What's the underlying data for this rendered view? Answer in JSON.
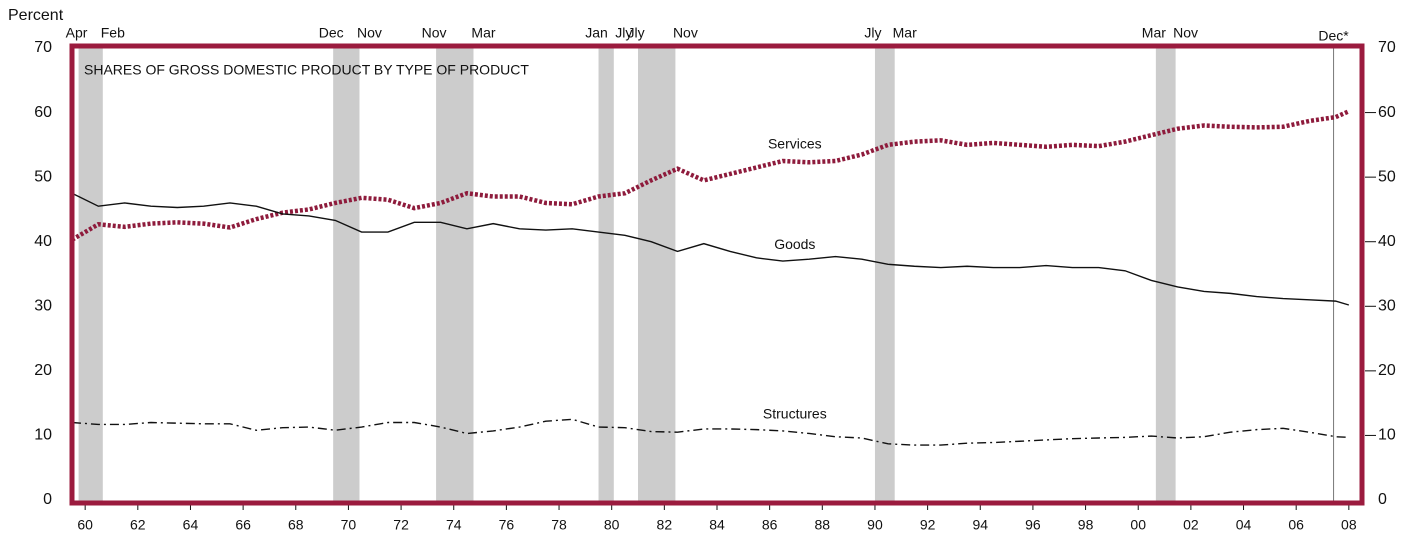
{
  "chart_data": {
    "type": "line",
    "title": "SHARES OF GROSS DOMESTIC PRODUCT BY TYPE OF PRODUCT",
    "y_label": "Percent",
    "x": [
      1960,
      1961,
      1962,
      1963,
      1964,
      1965,
      1966,
      1967,
      1968,
      1969,
      1970,
      1971,
      1972,
      1973,
      1974,
      1975,
      1976,
      1977,
      1978,
      1979,
      1980,
      1981,
      1982,
      1983,
      1984,
      1985,
      1986,
      1987,
      1988,
      1989,
      1990,
      1991,
      1992,
      1993,
      1994,
      1995,
      1996,
      1997,
      1998,
      1999,
      2000,
      2001,
      2002,
      2003,
      2004,
      2005,
      2006,
      2007,
      2008,
      2008.5
    ],
    "series": [
      {
        "name": "Services",
        "color": "#8e1b3c",
        "line_style": "dotted",
        "values": [
          40.3,
          42.7,
          42.3,
          42.8,
          43,
          42.8,
          42.2,
          43.5,
          44.5,
          45,
          46,
          46.8,
          46.5,
          45.2,
          46,
          47.5,
          47,
          47,
          46,
          45.8,
          47,
          47.5,
          49.5,
          51.3,
          49.5,
          50.5,
          51.5,
          52.5,
          52.3,
          52.5,
          53.5,
          55,
          55.5,
          55.7,
          55,
          55.3,
          55,
          54.7,
          55,
          54.8,
          55.5,
          56.5,
          57.5,
          58,
          57.8,
          57.7,
          57.8,
          58.7,
          59.3,
          60.2
        ]
      },
      {
        "name": "Goods",
        "color": "#111111",
        "line_style": "solid",
        "values": [
          47.5,
          45.5,
          46,
          45.5,
          45.3,
          45.5,
          46,
          45.5,
          44.3,
          44,
          43.3,
          41.5,
          41.5,
          43,
          43,
          42,
          42.8,
          42,
          41.8,
          42,
          41.5,
          41,
          40,
          38.5,
          39.7,
          38.5,
          37.5,
          37,
          37.3,
          37.7,
          37.3,
          36.5,
          36.2,
          36,
          36.2,
          36,
          36,
          36.3,
          36,
          36,
          35.5,
          34,
          33,
          32.3,
          32,
          31.5,
          31.2,
          31,
          30.8,
          30.2
        ]
      },
      {
        "name": "Structures",
        "color": "#111111",
        "line_style": "dashdot",
        "values": [
          12,
          11.7,
          11.7,
          12,
          11.9,
          11.8,
          11.8,
          10.8,
          11.2,
          11.3,
          10.8,
          11.3,
          12,
          12,
          11.3,
          10.3,
          10.7,
          11.3,
          12.2,
          12.5,
          11.3,
          11.2,
          10.6,
          10.5,
          11,
          11,
          10.9,
          10.7,
          10.3,
          9.8,
          9.6,
          8.7,
          8.5,
          8.5,
          8.8,
          8.9,
          9.1,
          9.3,
          9.5,
          9.6,
          9.7,
          9.9,
          9.6,
          9.8,
          10.5,
          10.9,
          11.1,
          10.5,
          9.8,
          9.7
        ]
      }
    ],
    "xlim": [
      1960,
      2009
    ],
    "xticks": [
      {
        "value": 1960.5,
        "label": "60"
      },
      {
        "value": 1962.5,
        "label": "62"
      },
      {
        "value": 1964.5,
        "label": "64"
      },
      {
        "value": 1966.5,
        "label": "66"
      },
      {
        "value": 1968.5,
        "label": "68"
      },
      {
        "value": 1970.5,
        "label": "70"
      },
      {
        "value": 1972.5,
        "label": "72"
      },
      {
        "value": 1974.5,
        "label": "74"
      },
      {
        "value": 1976.5,
        "label": "76"
      },
      {
        "value": 1978.5,
        "label": "78"
      },
      {
        "value": 1980.5,
        "label": "80"
      },
      {
        "value": 1982.5,
        "label": "82"
      },
      {
        "value": 1984.5,
        "label": "84"
      },
      {
        "value": 1986.5,
        "label": "86"
      },
      {
        "value": 1988.5,
        "label": "88"
      },
      {
        "value": 1990.5,
        "label": "90"
      },
      {
        "value": 1992.5,
        "label": "92"
      },
      {
        "value": 1994.5,
        "label": "94"
      },
      {
        "value": 1996.5,
        "label": "96"
      },
      {
        "value": 1998.5,
        "label": "98"
      },
      {
        "value": 2000.5,
        "label": "00"
      },
      {
        "value": 2002.5,
        "label": "02"
      },
      {
        "value": 2004.5,
        "label": "04"
      },
      {
        "value": 2006.5,
        "label": "06"
      },
      {
        "value": 2008.5,
        "label": "08"
      }
    ],
    "ylim": [
      0,
      70
    ],
    "yticks": [
      0,
      10,
      20,
      30,
      40,
      50,
      60,
      70
    ],
    "frame_color": "#9b1b3e",
    "shade_color": "#cccccc",
    "recessions": [
      {
        "start": 1960.25,
        "end": 1961.17,
        "start_label": "Apr",
        "end_label": "Feb"
      },
      {
        "start": 1969.92,
        "end": 1970.92,
        "start_label": "Dec",
        "end_label": "Nov"
      },
      {
        "start": 1973.83,
        "end": 1975.25,
        "start_label": "Nov",
        "end_label": "Mar"
      },
      {
        "start": 1980.0,
        "end": 1980.58,
        "start_label": "Jan",
        "end_label": "Jly"
      },
      {
        "start": 1981.5,
        "end": 1982.92,
        "start_label": "Jly",
        "end_label": "Nov"
      },
      {
        "start": 1990.5,
        "end": 1991.25,
        "start_label": "Jly",
        "end_label": "Mar"
      },
      {
        "start": 2001.17,
        "end": 2001.92,
        "start_label": "Mar",
        "end_label": "Nov"
      },
      {
        "start": 2007.92,
        "start_label": "Dec*"
      }
    ]
  }
}
